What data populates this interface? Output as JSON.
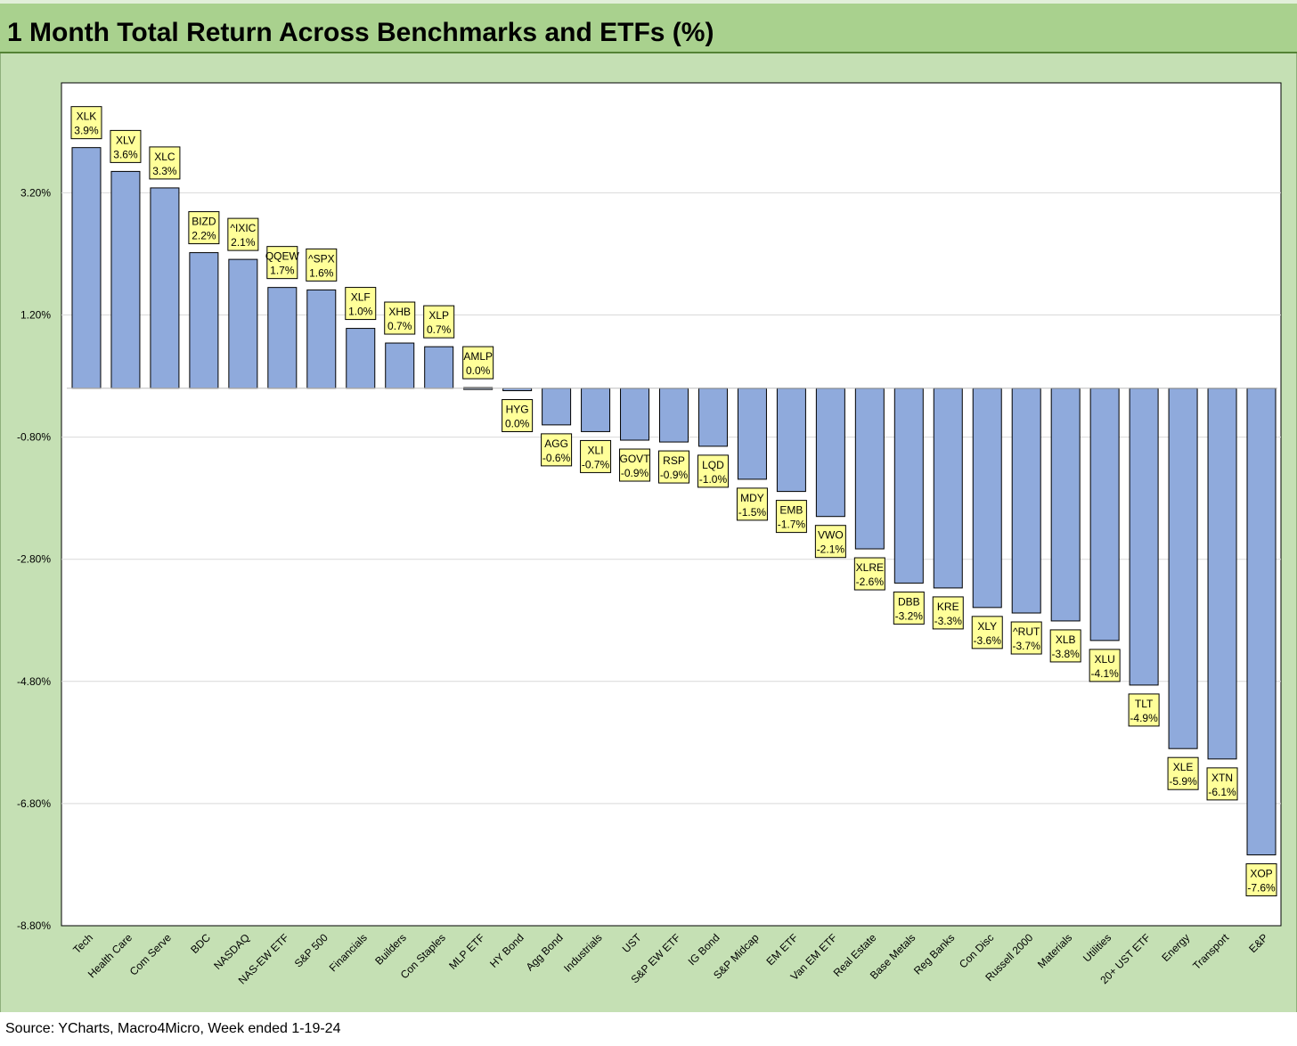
{
  "title": "1 Month Total Return Across Benchmarks and ETFs (%)",
  "source": "Source: YCharts, Macro4Micro, Week ended 1-19-24",
  "colors": {
    "title_band": "#a9d18e",
    "chart_background": "#c5e0b4",
    "plot_background": "#ffffff",
    "bar_fill": "#8faadc",
    "label_fill": "#ffff99"
  },
  "chart_data": {
    "type": "bar",
    "title": "1 Month Total Return Across Benchmarks and ETFs (%)",
    "xlabel": "",
    "ylabel": "",
    "ylim": [
      -8.8,
      5.0
    ],
    "yticks": [
      {
        "value": 3.2,
        "label": "3.20%"
      },
      {
        "value": 1.2,
        "label": "1.20%"
      },
      {
        "value": -0.8,
        "label": "-0.80%"
      },
      {
        "value": -2.8,
        "label": "-2.80%"
      },
      {
        "value": -4.8,
        "label": "-4.80%"
      },
      {
        "value": -6.8,
        "label": "-6.80%"
      },
      {
        "value": -8.8,
        "label": "-8.80%"
      }
    ],
    "grid": true,
    "legend": "none",
    "categories": [
      "Tech",
      "Health Care",
      "Com Serve",
      "BDC",
      "NASDAQ",
      "NAS-EW ETF",
      "S&P 500",
      "Financials",
      "Builders",
      "Con Staples",
      "MLP ETF",
      "HY Bond",
      "Agg Bond",
      "Industrials",
      "UST",
      "S&P EW ETF",
      "IG Bond",
      "S&P Midcap",
      "EM ETF",
      "Van EM ETF",
      "Real Estate",
      "Base Metals",
      "Reg Banks",
      "Con Disc",
      "Russell 2000",
      "Materials",
      "Utilities",
      "20+ UST ETF",
      "Energy",
      "Transport",
      "E&P"
    ],
    "tickers": [
      "XLK",
      "XLV",
      "XLC",
      "BIZD",
      "^IXIC",
      "QQEW",
      "^SPX",
      "XLF",
      "XHB",
      "XLP",
      "AMLP",
      "HYG",
      "AGG",
      "XLI",
      "GOVT",
      "RSP",
      "LQD",
      "MDY",
      "EMB",
      "VWO",
      "XLRE",
      "DBB",
      "KRE",
      "XLY",
      "^RUT",
      "XLB",
      "XLU",
      "TLT",
      "XLE",
      "XTN",
      "XOP"
    ],
    "values": [
      3.94,
      3.55,
      3.28,
      2.22,
      2.11,
      1.65,
      1.61,
      0.98,
      0.74,
      0.68,
      0.01,
      -0.04,
      -0.6,
      -0.71,
      -0.85,
      -0.88,
      -0.95,
      -1.49,
      -1.69,
      -2.1,
      -2.63,
      -3.19,
      -3.27,
      -3.59,
      -3.68,
      -3.81,
      -4.13,
      -4.86,
      -5.9,
      -6.07,
      -7.64
    ],
    "value_labels": [
      "3.9%",
      "3.6%",
      "3.3%",
      "2.2%",
      "2.1%",
      "1.7%",
      "1.6%",
      "1.0%",
      "0.7%",
      "0.7%",
      "0.0%",
      "0.0%",
      "-0.6%",
      "-0.7%",
      "-0.9%",
      "-0.9%",
      "-1.0%",
      "-1.5%",
      "-1.7%",
      "-2.1%",
      "-2.6%",
      "-3.2%",
      "-3.3%",
      "-3.6%",
      "-3.7%",
      "-3.8%",
      "-4.1%",
      "-4.9%",
      "-5.9%",
      "-6.1%",
      "-7.6%"
    ]
  }
}
